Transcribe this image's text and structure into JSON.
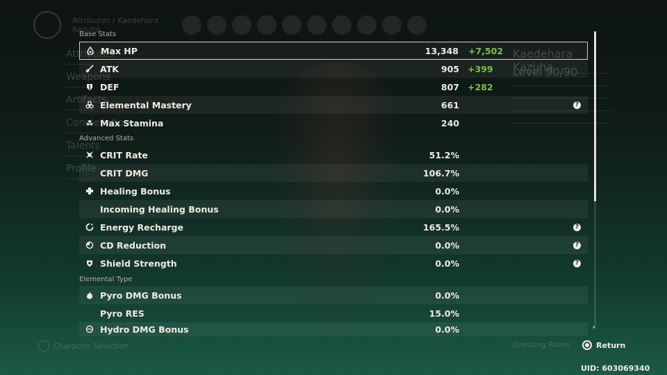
{
  "background": {
    "breadcrumb": "Attributes / Kaedehara Kazuha",
    "menu_items": [
      "Attributes",
      "Weapons",
      "Artifacts",
      "Constellation",
      "Talents",
      "Profile"
    ],
    "character_name": "Kaedehara Kazuha",
    "level_text": "Level 90/90",
    "character_selection_label": "Character Selection",
    "dressing_room_label": "Dressing Room"
  },
  "sections": {
    "base": "Base Stats",
    "advanced": "Advanced Stats",
    "elemental": "Elemental Type"
  },
  "base_stats": [
    {
      "icon": "hp-drop-icon",
      "name": "Max HP",
      "value": "13,348",
      "bonus": "+7,502"
    },
    {
      "icon": "sword-icon",
      "name": "ATK",
      "value": "905",
      "bonus": "+399"
    },
    {
      "icon": "shield-icon",
      "name": "DEF",
      "value": "807",
      "bonus": "+282"
    },
    {
      "icon": "elemental-mastery-icon",
      "name": "Elemental Mastery",
      "value": "661",
      "bonus": "",
      "help": "?"
    },
    {
      "icon": "stamina-icon",
      "name": "Max Stamina",
      "value": "240",
      "bonus": ""
    }
  ],
  "advanced_stats": [
    {
      "icon": "crit-icon",
      "name": "CRIT Rate",
      "value": "51.2%"
    },
    {
      "icon": "",
      "name": "CRIT DMG",
      "value": "106.7%"
    },
    {
      "icon": "healing-cross-icon",
      "name": "Healing Bonus",
      "value": "0.0%"
    },
    {
      "icon": "",
      "name": "Incoming Healing Bonus",
      "value": "0.0%"
    },
    {
      "icon": "energy-recharge-icon",
      "name": "Energy Recharge",
      "value": "165.5%",
      "help": "?"
    },
    {
      "icon": "cd-reduction-icon",
      "name": "CD Reduction",
      "value": "0.0%",
      "help": "?"
    },
    {
      "icon": "shield-strength-icon",
      "name": "Shield Strength",
      "value": "0.0%",
      "help": "?"
    }
  ],
  "elemental_stats": [
    {
      "icon": "pyro-icon",
      "name": "Pyro DMG Bonus",
      "value": "0.0%"
    },
    {
      "icon": "",
      "name": "Pyro RES",
      "value": "15.0%"
    },
    {
      "icon": "hydro-icon",
      "name": "Hydro DMG Bonus",
      "value": "0.0%"
    }
  ],
  "footer": {
    "return_label": "Return",
    "uid": "UID: 603069340"
  },
  "colors": {
    "bonus_green": "#7ac143",
    "text_light": "#f1ebde"
  }
}
